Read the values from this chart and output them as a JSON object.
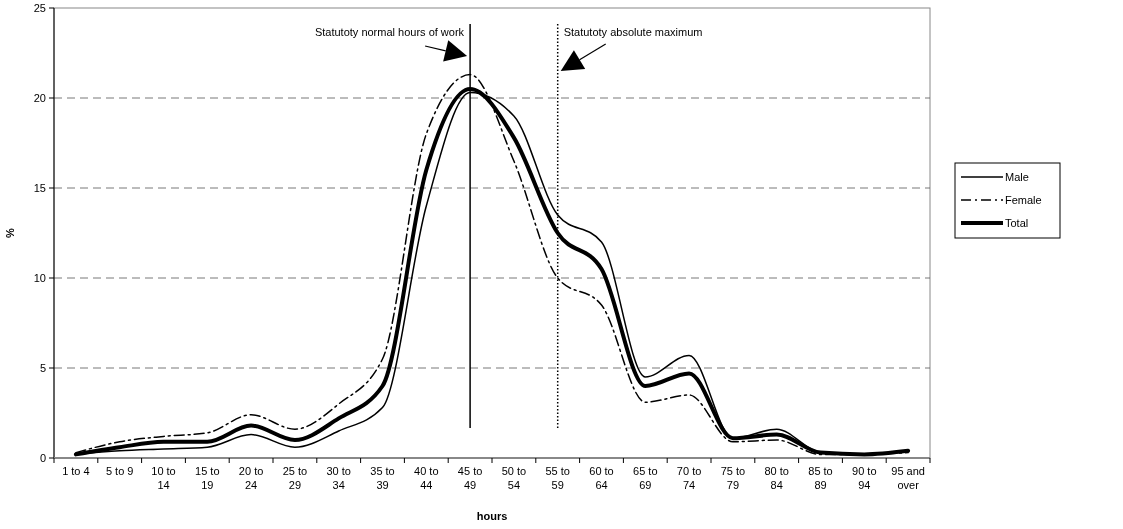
{
  "chart_data": {
    "type": "line",
    "xlabel": "hours",
    "ylabel": "%",
    "categories": [
      "1 to 4",
      "5 to 9",
      "10 to 14",
      "15 to 19",
      "20 to 24",
      "25 to 29",
      "30 to 34",
      "35 to 39",
      "40 to 44",
      "45 to 49",
      "50 to 54",
      "55 to 59",
      "60 to 64",
      "65 to 69",
      "70 to 74",
      "75 to 79",
      "80 to 84",
      "85 to 89",
      "90 to 94",
      "95 and over"
    ],
    "series": [
      {
        "name": "Male",
        "color": "#000000",
        "line_style": "solid",
        "values": [
          0.2,
          0.4,
          0.5,
          0.6,
          1.3,
          0.6,
          1.5,
          2.8,
          14.0,
          20.3,
          19.0,
          13.5,
          12.0,
          4.5,
          5.7,
          1.1,
          1.6,
          0.3,
          0.2,
          0.4
        ]
      },
      {
        "name": "Female",
        "color": "#000000",
        "line_style": "dashed",
        "values": [
          0.3,
          0.9,
          1.2,
          1.4,
          2.4,
          1.6,
          3.0,
          5.5,
          18.0,
          21.3,
          16.5,
          10.0,
          8.5,
          3.1,
          3.5,
          0.9,
          1.0,
          0.2,
          0.2,
          0.3
        ]
      },
      {
        "name": "Total",
        "color": "#000000",
        "line_style": "solid",
        "values": [
          0.2,
          0.6,
          0.9,
          0.9,
          1.8,
          1.0,
          2.2,
          4.0,
          16.0,
          20.5,
          17.8,
          12.5,
          10.5,
          4.0,
          4.7,
          1.1,
          1.3,
          0.3,
          0.2,
          0.4
        ]
      }
    ],
    "ylim": [
      0,
      25
    ],
    "yticks": [
      0,
      5,
      10,
      15,
      20,
      25
    ],
    "grid": "y",
    "legend": "right",
    "marker": "none",
    "ref_lines": [
      {
        "axis": "x",
        "value": "45 to 49",
        "label": "Statutoty normal hours of work",
        "color": "#000000",
        "line_style": "solid"
      },
      {
        "axis": "x",
        "value": "55 to 59",
        "label": "Statutoty absolute maximum",
        "color": "#000000",
        "line_style": "dotted"
      }
    ]
  }
}
